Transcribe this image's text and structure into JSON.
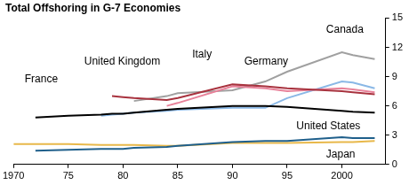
{
  "chart_data": {
    "type": "line",
    "title": "Total Offshoring in G-7 Economies",
    "x": [
      1970,
      1972,
      1975,
      1978,
      1979,
      1980,
      1981,
      1984,
      1985,
      1990,
      1993,
      1995,
      2000,
      2001,
      2003
    ],
    "series": [
      {
        "name": "France",
        "color": "#000000",
        "values": [
          null,
          4.8,
          5.0,
          5.1,
          5.2,
          5.2,
          5.3,
          5.6,
          5.7,
          6.0,
          6.0,
          5.9,
          5.5,
          5.4,
          5.3
        ]
      },
      {
        "name": "United Kingdom",
        "color": "#a8323e",
        "values": [
          null,
          null,
          null,
          null,
          7.0,
          6.9,
          6.8,
          6.6,
          6.8,
          8.2,
          8.0,
          7.8,
          7.5,
          7.4,
          7.2
        ]
      },
      {
        "name": "Italy",
        "color": "#e8829a",
        "values": [
          null,
          null,
          null,
          null,
          null,
          null,
          null,
          6.0,
          6.3,
          8.0,
          7.8,
          7.5,
          7.8,
          7.7,
          7.4
        ]
      },
      {
        "name": "Germany",
        "color": "#8ab8e6",
        "values": [
          null,
          null,
          null,
          5.0,
          5.1,
          5.2,
          5.3,
          5.5,
          5.6,
          5.8,
          5.8,
          6.8,
          8.5,
          8.4,
          7.8
        ]
      },
      {
        "name": "Canada",
        "color": "#a0a0a0",
        "values": [
          null,
          null,
          null,
          null,
          null,
          null,
          6.5,
          7.0,
          7.3,
          7.6,
          8.5,
          9.5,
          11.5,
          11.2,
          10.8
        ]
      },
      {
        "name": "United States",
        "color": "#1f5f8b",
        "values": [
          null,
          1.4,
          1.5,
          1.6,
          1.6,
          1.6,
          1.7,
          1.8,
          1.9,
          2.3,
          2.4,
          2.4,
          2.8,
          2.7,
          2.7
        ]
      },
      {
        "name": "Japan",
        "color": "#e8b84a",
        "values": [
          2.1,
          2.1,
          2.1,
          2.0,
          2.0,
          2.0,
          2.0,
          1.9,
          1.9,
          2.2,
          2.2,
          2.2,
          2.3,
          2.3,
          2.4
        ]
      }
    ],
    "xlim": [
      1970,
      2004
    ],
    "xticks": [
      1970,
      {
        "value": 1975,
        "label": "75"
      },
      {
        "value": 1980,
        "label": "80"
      },
      {
        "value": 1985,
        "label": "85"
      },
      {
        "value": 1990,
        "label": "90"
      },
      {
        "value": 1995,
        "label": "95"
      },
      2000
    ],
    "ylim": [
      0,
      15
    ],
    "yticks": [
      0,
      3,
      6,
      9,
      12,
      15
    ],
    "grid": false
  }
}
